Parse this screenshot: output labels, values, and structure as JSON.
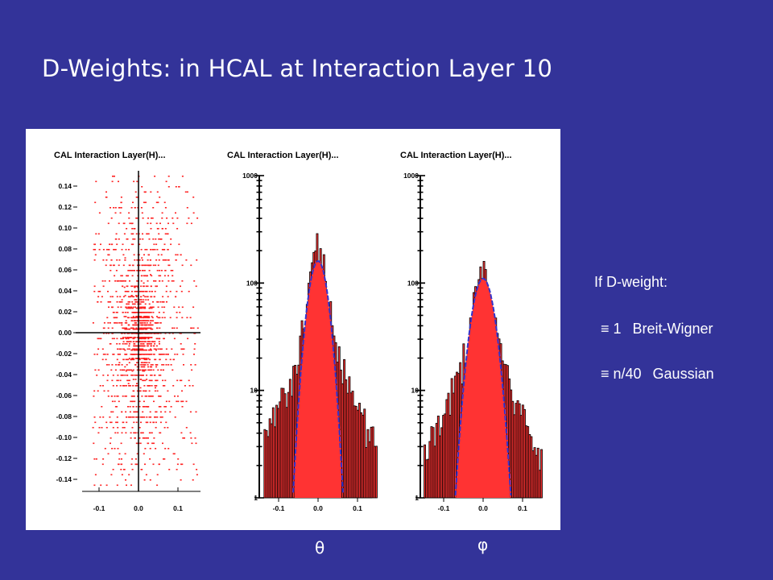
{
  "slide": {
    "title": "D-Weights: in HCAL at Interaction Layer 10"
  },
  "colors": {
    "background": "#333399",
    "hist_fill": "#ff3333",
    "fit_curve": "#3333cc",
    "scatter": "#ff2020"
  },
  "legend": {
    "heading": "If D-weight:",
    "line1_symbol": "≡ 1",
    "line1_label": "Breit-Wigner",
    "line2_symbol": "≡ n/40",
    "line2_label": "Gaussian"
  },
  "axis_symbols": {
    "theta": "θ",
    "phi": "φ"
  },
  "chart_data": [
    {
      "type": "scatter",
      "title": "CAL Interaction Layer(H)...",
      "xlabel": "",
      "ylabel": "",
      "xlim": [
        -0.15,
        0.15
      ],
      "ylim": [
        -0.16,
        0.16
      ],
      "x_ticks": [
        "-0.1",
        "0.0",
        "0.1"
      ],
      "y_ticks": [
        "0.14",
        "0.12",
        "0.10",
        "0.08",
        "0.06",
        "0.04",
        "0.02",
        "0.00",
        "-0.02",
        "-0.04",
        "-0.06",
        "-0.08",
        "-0.10",
        "-0.12",
        "-0.14"
      ],
      "density": {
        "x_width": 0.05,
        "y_width": 0.07,
        "peak": [
          0.0,
          0.0
        ]
      }
    },
    {
      "type": "bar",
      "title": "CAL Interaction Layer(H)...",
      "xlabel": "θ",
      "ylabel": "",
      "scale": "log",
      "xlim": [
        -0.15,
        0.15
      ],
      "ylim": [
        1,
        1000
      ],
      "x_ticks": [
        "-0.1",
        "0.0",
        "0.1"
      ],
      "y_ticks": [
        "1000",
        "100",
        "10",
        "1"
      ],
      "peak": 210,
      "fit": {
        "type": "gaussian",
        "mean": 0.0,
        "sigma": 0.02,
        "amplitude": 160
      }
    },
    {
      "type": "bar",
      "title": "CAL Interaction Layer(H)...",
      "xlabel": "φ",
      "ylabel": "",
      "scale": "log",
      "xlim": [
        -0.15,
        0.15
      ],
      "ylim": [
        1,
        1000
      ],
      "x_ticks": [
        "-0.1",
        "0.0",
        "0.1"
      ],
      "y_ticks": [
        "1000",
        "100",
        "10",
        "1"
      ],
      "peak": 140,
      "fit": {
        "type": "gaussian",
        "mean": 0.0,
        "sigma": 0.023,
        "amplitude": 110
      }
    }
  ]
}
